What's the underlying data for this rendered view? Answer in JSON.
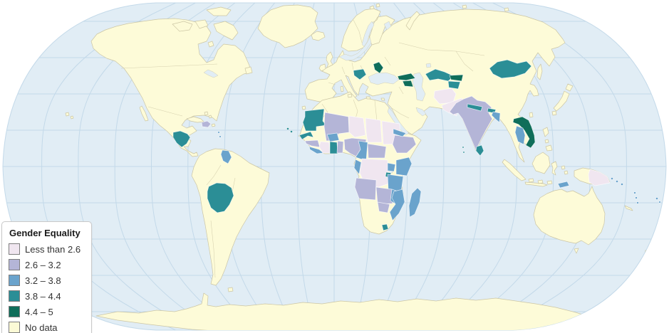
{
  "legend": {
    "title": "Gender Equality",
    "items": [
      {
        "label": "Less than 2.6",
        "color": "#f0e6f0"
      },
      {
        "label": "2.6 – 3.2",
        "color": "#b4b5d7"
      },
      {
        "label": "3.2 – 3.8",
        "color": "#6aa3cc"
      },
      {
        "label": "3.8 – 4.4",
        "color": "#2b8e96"
      },
      {
        "label": "4.4 – 5",
        "color": "#0f6e5a"
      },
      {
        "label": "No data",
        "color": "#fcfad6"
      }
    ]
  },
  "map": {
    "ocean_color": "#e1edf5",
    "graticule_color": "#c3d9e9",
    "land_no_data_color": "#fdfbd8",
    "coast_border_color": "#ccc6a4",
    "class_colors": {
      "c1": "#f0e6f0",
      "c2": "#b4b5d7",
      "c3": "#6aa3cc",
      "c4": "#2b8e96",
      "c5": "#0f6e5a",
      "nodata": "#fdfbd8"
    },
    "countries": [
      {
        "id": "moldova",
        "name": "Moldova",
        "class": "c5"
      },
      {
        "id": "georgia",
        "name": "Georgia",
        "class": "c5"
      },
      {
        "id": "armenia",
        "name": "Armenia",
        "class": "c5"
      },
      {
        "id": "kyrgyzstan",
        "name": "Kyrgyzstan",
        "class": "c5"
      },
      {
        "id": "vietnam",
        "name": "Vietnam / Laos",
        "class": "c5"
      },
      {
        "id": "bosnia",
        "name": "Bosnia and Herzegovina",
        "class": "c4"
      },
      {
        "id": "mauritania",
        "name": "Mauritania",
        "class": "c4"
      },
      {
        "id": "senegal",
        "name": "Senegal",
        "class": "c4"
      },
      {
        "id": "cape-verde",
        "name": "Cape Verde",
        "class": "c4"
      },
      {
        "id": "ghana",
        "name": "Ghana",
        "class": "c4"
      },
      {
        "id": "honduras-nicaragua",
        "name": "Honduras / Nicaragua",
        "class": "c4"
      },
      {
        "id": "bolivia",
        "name": "Bolivia",
        "class": "c4"
      },
      {
        "id": "uzbekistan",
        "name": "Uzbekistan",
        "class": "c4"
      },
      {
        "id": "tajikistan",
        "name": "Tajikistan",
        "class": "c4"
      },
      {
        "id": "mongolia",
        "name": "Mongolia",
        "class": "c4"
      },
      {
        "id": "nepal",
        "name": "Nepal",
        "class": "c4"
      },
      {
        "id": "bhutan",
        "name": "Bhutan",
        "class": "c4"
      },
      {
        "id": "sri-lanka",
        "name": "Sri Lanka",
        "class": "c4"
      },
      {
        "id": "maldives",
        "name": "Maldives",
        "class": "c4"
      },
      {
        "id": "rwanda-burundi",
        "name": "Rwanda / Burundi",
        "class": "c4"
      },
      {
        "id": "lesotho",
        "name": "Lesotho",
        "class": "c4"
      },
      {
        "id": "burkina",
        "name": "Burkina Faso",
        "class": "c3"
      },
      {
        "id": "sl-liberia",
        "name": "Sierra Leone / Liberia",
        "class": "c3"
      },
      {
        "id": "cameroon",
        "name": "Cameroon",
        "class": "c3"
      },
      {
        "id": "congo",
        "name": "Congo",
        "class": "c3"
      },
      {
        "id": "eritrea",
        "name": "Eritrea",
        "class": "c3"
      },
      {
        "id": "uganda",
        "name": "Uganda",
        "class": "c3"
      },
      {
        "id": "kenya",
        "name": "Kenya",
        "class": "c3"
      },
      {
        "id": "tanzania",
        "name": "Tanzania",
        "class": "c3"
      },
      {
        "id": "malawi",
        "name": "Malawi",
        "class": "c3"
      },
      {
        "id": "mozambique",
        "name": "Mozambique",
        "class": "c3"
      },
      {
        "id": "madagascar",
        "name": "Madagascar",
        "class": "c3"
      },
      {
        "id": "bangladesh",
        "name": "Bangladesh",
        "class": "c3"
      },
      {
        "id": "cambodia",
        "name": "Cambodia",
        "class": "c3"
      },
      {
        "id": "guyana",
        "name": "Guyana",
        "class": "c3"
      },
      {
        "id": "timor",
        "name": "Timor-Leste",
        "class": "c3"
      },
      {
        "id": "solomon",
        "name": "Solomon Islands",
        "class": "c3"
      },
      {
        "id": "vanuatu",
        "name": "Vanuatu",
        "class": "c3"
      },
      {
        "id": "fiji",
        "name": "Fiji",
        "class": "c3"
      },
      {
        "id": "antilles",
        "name": "Lesser Antilles",
        "class": "c3"
      },
      {
        "id": "mali",
        "name": "Mali",
        "class": "c2"
      },
      {
        "id": "guinea",
        "name": "Guinea",
        "class": "c2"
      },
      {
        "id": "togo-benin",
        "name": "Togo / Benin",
        "class": "c2"
      },
      {
        "id": "nigeria",
        "name": "Nigeria",
        "class": "c2"
      },
      {
        "id": "car",
        "name": "Central African Republic",
        "class": "c2"
      },
      {
        "id": "ethiopia",
        "name": "Ethiopia",
        "class": "c2"
      },
      {
        "id": "angola",
        "name": "Angola",
        "class": "c2"
      },
      {
        "id": "zambia",
        "name": "Zambia",
        "class": "c2"
      },
      {
        "id": "zimbabwe",
        "name": "Zimbabwe",
        "class": "c2"
      },
      {
        "id": "india",
        "name": "India",
        "class": "c2"
      },
      {
        "id": "haiti-dr",
        "name": "Haiti / Dominican Republic",
        "class": "c2"
      },
      {
        "id": "ivory",
        "name": "Côte d'Ivoire",
        "class": "c1"
      },
      {
        "id": "niger",
        "name": "Niger",
        "class": "c1"
      },
      {
        "id": "chad",
        "name": "Chad",
        "class": "c1"
      },
      {
        "id": "sudan",
        "name": "Sudan",
        "class": "c1"
      },
      {
        "id": "drc",
        "name": "DR Congo",
        "class": "c1"
      },
      {
        "id": "afghanistan",
        "name": "Afghanistan",
        "class": "c1"
      },
      {
        "id": "pakistan",
        "name": "Pakistan",
        "class": "c1"
      },
      {
        "id": "png",
        "name": "Papua New Guinea",
        "class": "c1"
      }
    ]
  }
}
